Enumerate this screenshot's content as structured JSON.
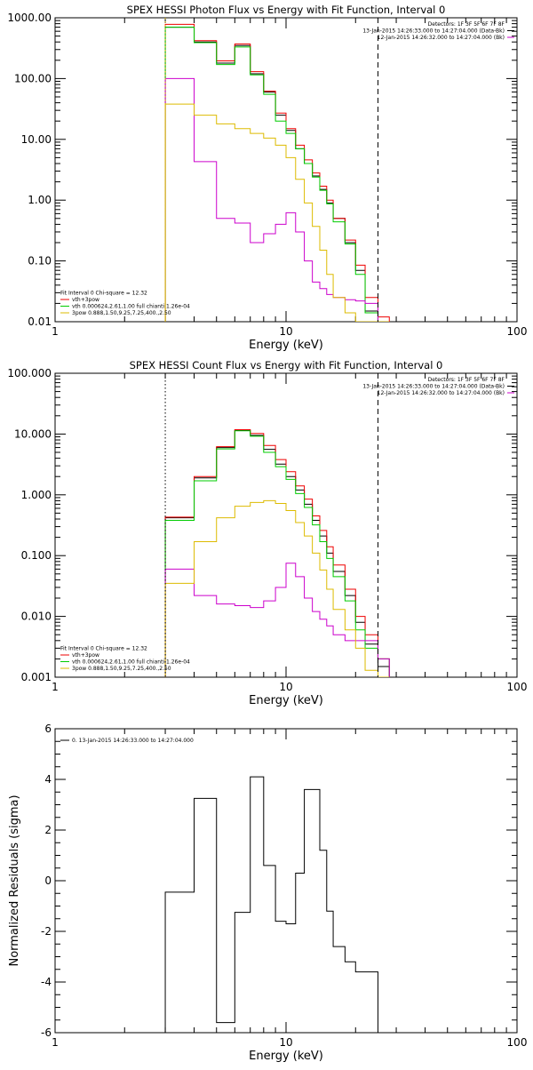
{
  "chart_data": [
    {
      "type": "line",
      "title": "SPEX HESSI Photon Flux vs Energy with Fit Function, Interval 0",
      "xlabel": "Energy (keV)",
      "ylabel": "",
      "xscale": "log",
      "yscale": "log",
      "xlim": [
        1,
        100
      ],
      "ylim": [
        0.01,
        1000
      ],
      "x_ticks": [
        1,
        10,
        100
      ],
      "x_tick_labels": [
        "1",
        "10",
        "100"
      ],
      "y_ticks": [
        0.01,
        0.1,
        1,
        10,
        100,
        1000
      ],
      "y_tick_labels": [
        "0.01",
        "0.10",
        "1.00",
        "10.00",
        "100.00",
        "1000.00"
      ],
      "header_right": [
        "Detectors: 1F 3F 5F 6F 7F 8F",
        "13-Jan-2015 14:26:33.000 to 14:27:04.000 (Data-Bk)",
        "12-Jan-2015 14:26:32.000 to 14:27:04.000 (Bk)"
      ],
      "header_colors": [
        "#000000",
        "#cc00cc"
      ],
      "legend_left": [
        {
          "text": "Fit Interval  0    Chi-square = 12.32",
          "color": null
        },
        {
          "text": "vth+3pow",
          "color": "#ee0000"
        },
        {
          "text": "vth 0.000624,2.61,1.00   full chianti 1.26e-04",
          "color": "#00cc00"
        },
        {
          "text": "3pow 0.888,1.50,9.25,7.25,400.,2.50",
          "color": "#ddbb00"
        }
      ],
      "vlines": [
        {
          "x": 3,
          "style": "dotted",
          "color": "#ddbb00"
        },
        {
          "x": 25,
          "style": "dashed",
          "color": "#000000"
        }
      ],
      "bin_edges": [
        3,
        4,
        5,
        6,
        7,
        8,
        9,
        10,
        11,
        12,
        13,
        14,
        15,
        16,
        18,
        20,
        22,
        25,
        28
      ],
      "series": [
        {
          "color": "#000000",
          "values": [
            700,
            400,
            180,
            350,
            120,
            60,
            25,
            14,
            7,
            4,
            2.5,
            1.5,
            0.9,
            0.5,
            0.2,
            0.07,
            0.015,
            0.007
          ]
        },
        {
          "color": "#ee0000",
          "values": [
            780,
            420,
            195,
            370,
            130,
            62,
            27,
            15,
            8,
            4.6,
            2.8,
            1.7,
            1.0,
            0.5,
            0.22,
            0.085,
            0.025,
            0.012
          ]
        },
        {
          "color": "#00cc00",
          "values": [
            700,
            390,
            170,
            330,
            115,
            55,
            20,
            12.5,
            7,
            4,
            2.4,
            1.45,
            0.87,
            0.44,
            0.19,
            0.06,
            0.014,
            0.007
          ]
        },
        {
          "color": "#cc00cc",
          "values": [
            100,
            4.3,
            0.5,
            0.42,
            0.2,
            0.28,
            0.4,
            0.62,
            0.3,
            0.1,
            0.045,
            0.035,
            0.028,
            0.025,
            0.023,
            0.022,
            0.02,
            0.01
          ]
        },
        {
          "color": "#ddbb00",
          "values": [
            38,
            25,
            18,
            15,
            12.5,
            10.5,
            8,
            5,
            2.2,
            0.9,
            0.37,
            0.15,
            0.06,
            0.025,
            0.014,
            0.01,
            0.01,
            0.01
          ]
        }
      ]
    },
    {
      "type": "line",
      "title": "SPEX HESSI Count Flux vs Energy with Fit Function, Interval 0",
      "xlabel": "Energy (keV)",
      "ylabel": "",
      "xscale": "log",
      "yscale": "log",
      "xlim": [
        1,
        100
      ],
      "ylim": [
        0.001,
        100
      ],
      "x_ticks": [
        1,
        10,
        100
      ],
      "x_tick_labels": [
        "1",
        "10",
        "100"
      ],
      "y_ticks": [
        0.001,
        0.01,
        0.1,
        1,
        10,
        100
      ],
      "y_tick_labels": [
        "0.001",
        "0.010",
        "0.100",
        "1.000",
        "10.000",
        "100.000"
      ],
      "header_right": [
        "Detectors: 1F 3F 5F 6F 7F 8F",
        "13-Jan-2015 14:26:33.000 to 14:27:04.000 (Data-Bk)",
        "12-Jan-2015 14:26:32.000 to 14:27:04.000 (Bk)"
      ],
      "header_colors": [
        "#000000",
        "#cc00cc"
      ],
      "legend_left": [
        {
          "text": "Fit Interval  0    Chi-square = 12.32",
          "color": null
        },
        {
          "text": "vth+3pow",
          "color": "#ee0000"
        },
        {
          "text": "vth 0.000624,2.61,1.00   full chianti 1.26e-04",
          "color": "#00cc00"
        },
        {
          "text": "3pow 0.888,1.50,9.25,7.25,400.,2.50",
          "color": "#ddbb00"
        }
      ],
      "vlines": [
        {
          "x": 3,
          "style": "dotted",
          "color": "#000000"
        },
        {
          "x": 25,
          "style": "dashed",
          "color": "#000000"
        }
      ],
      "bin_edges": [
        3,
        4,
        5,
        6,
        7,
        8,
        9,
        10,
        11,
        12,
        13,
        14,
        15,
        16,
        18,
        20,
        22,
        25,
        28
      ],
      "series": [
        {
          "color": "#000000",
          "values": [
            0.42,
            1.9,
            6.0,
            11.5,
            9.5,
            5.6,
            3.2,
            2.0,
            1.2,
            0.7,
            0.38,
            0.21,
            0.11,
            0.055,
            0.022,
            0.008,
            0.0035,
            0.0015
          ]
        },
        {
          "color": "#ee0000",
          "values": [
            0.43,
            2.0,
            6.2,
            11.8,
            10.2,
            6.5,
            3.8,
            2.4,
            1.4,
            0.85,
            0.45,
            0.26,
            0.14,
            0.07,
            0.028,
            0.01,
            0.005,
            0.002
          ]
        },
        {
          "color": "#00cc00",
          "values": [
            0.38,
            1.7,
            5.7,
            11.3,
            9.2,
            5.0,
            2.9,
            1.8,
            1.05,
            0.62,
            0.32,
            0.17,
            0.09,
            0.045,
            0.018,
            0.006,
            0.003,
            0.002
          ]
        },
        {
          "color": "#cc00cc",
          "values": [
            0.06,
            0.022,
            0.016,
            0.015,
            0.014,
            0.018,
            0.03,
            0.075,
            0.045,
            0.02,
            0.012,
            0.009,
            0.007,
            0.005,
            0.004,
            0.004,
            0.004,
            0.002
          ]
        },
        {
          "color": "#ddbb00",
          "values": [
            0.035,
            0.17,
            0.42,
            0.65,
            0.75,
            0.8,
            0.72,
            0.55,
            0.35,
            0.21,
            0.11,
            0.058,
            0.028,
            0.013,
            0.006,
            0.003,
            0.0013,
            0.001
          ]
        }
      ]
    },
    {
      "type": "line",
      "title": "",
      "xlabel": "Energy (keV)",
      "ylabel": "Normalized Residuals (sigma)",
      "xscale": "log",
      "yscale": "linear",
      "xlim": [
        1,
        100
      ],
      "ylim": [
        -6,
        6
      ],
      "x_ticks": [
        1,
        10,
        100
      ],
      "x_tick_labels": [
        "1",
        "10",
        "100"
      ],
      "y_ticks": [
        -6,
        -4,
        -2,
        0,
        2,
        4,
        6
      ],
      "y_tick_labels": [
        "-6",
        "-4",
        "-2",
        "0",
        "2",
        "4",
        "6"
      ],
      "legend_left": [
        {
          "text": "0. 13-Jan-2015 14:26:33.000 to 14:27:04.000",
          "color": "#000000"
        }
      ],
      "bin_edges": [
        3,
        4,
        5,
        6,
        7,
        8,
        9,
        10,
        11,
        12,
        13,
        14,
        15,
        16,
        18,
        20,
        22,
        25
      ],
      "series": [
        {
          "color": "#000000",
          "values": [
            -0.45,
            3.25,
            -5.6,
            -1.25,
            4.1,
            0.6,
            -1.6,
            -1.7,
            0.3,
            3.6,
            3.6,
            1.2,
            -1.2,
            -2.6,
            -3.2,
            -3.6,
            -3.6
          ]
        }
      ]
    }
  ]
}
